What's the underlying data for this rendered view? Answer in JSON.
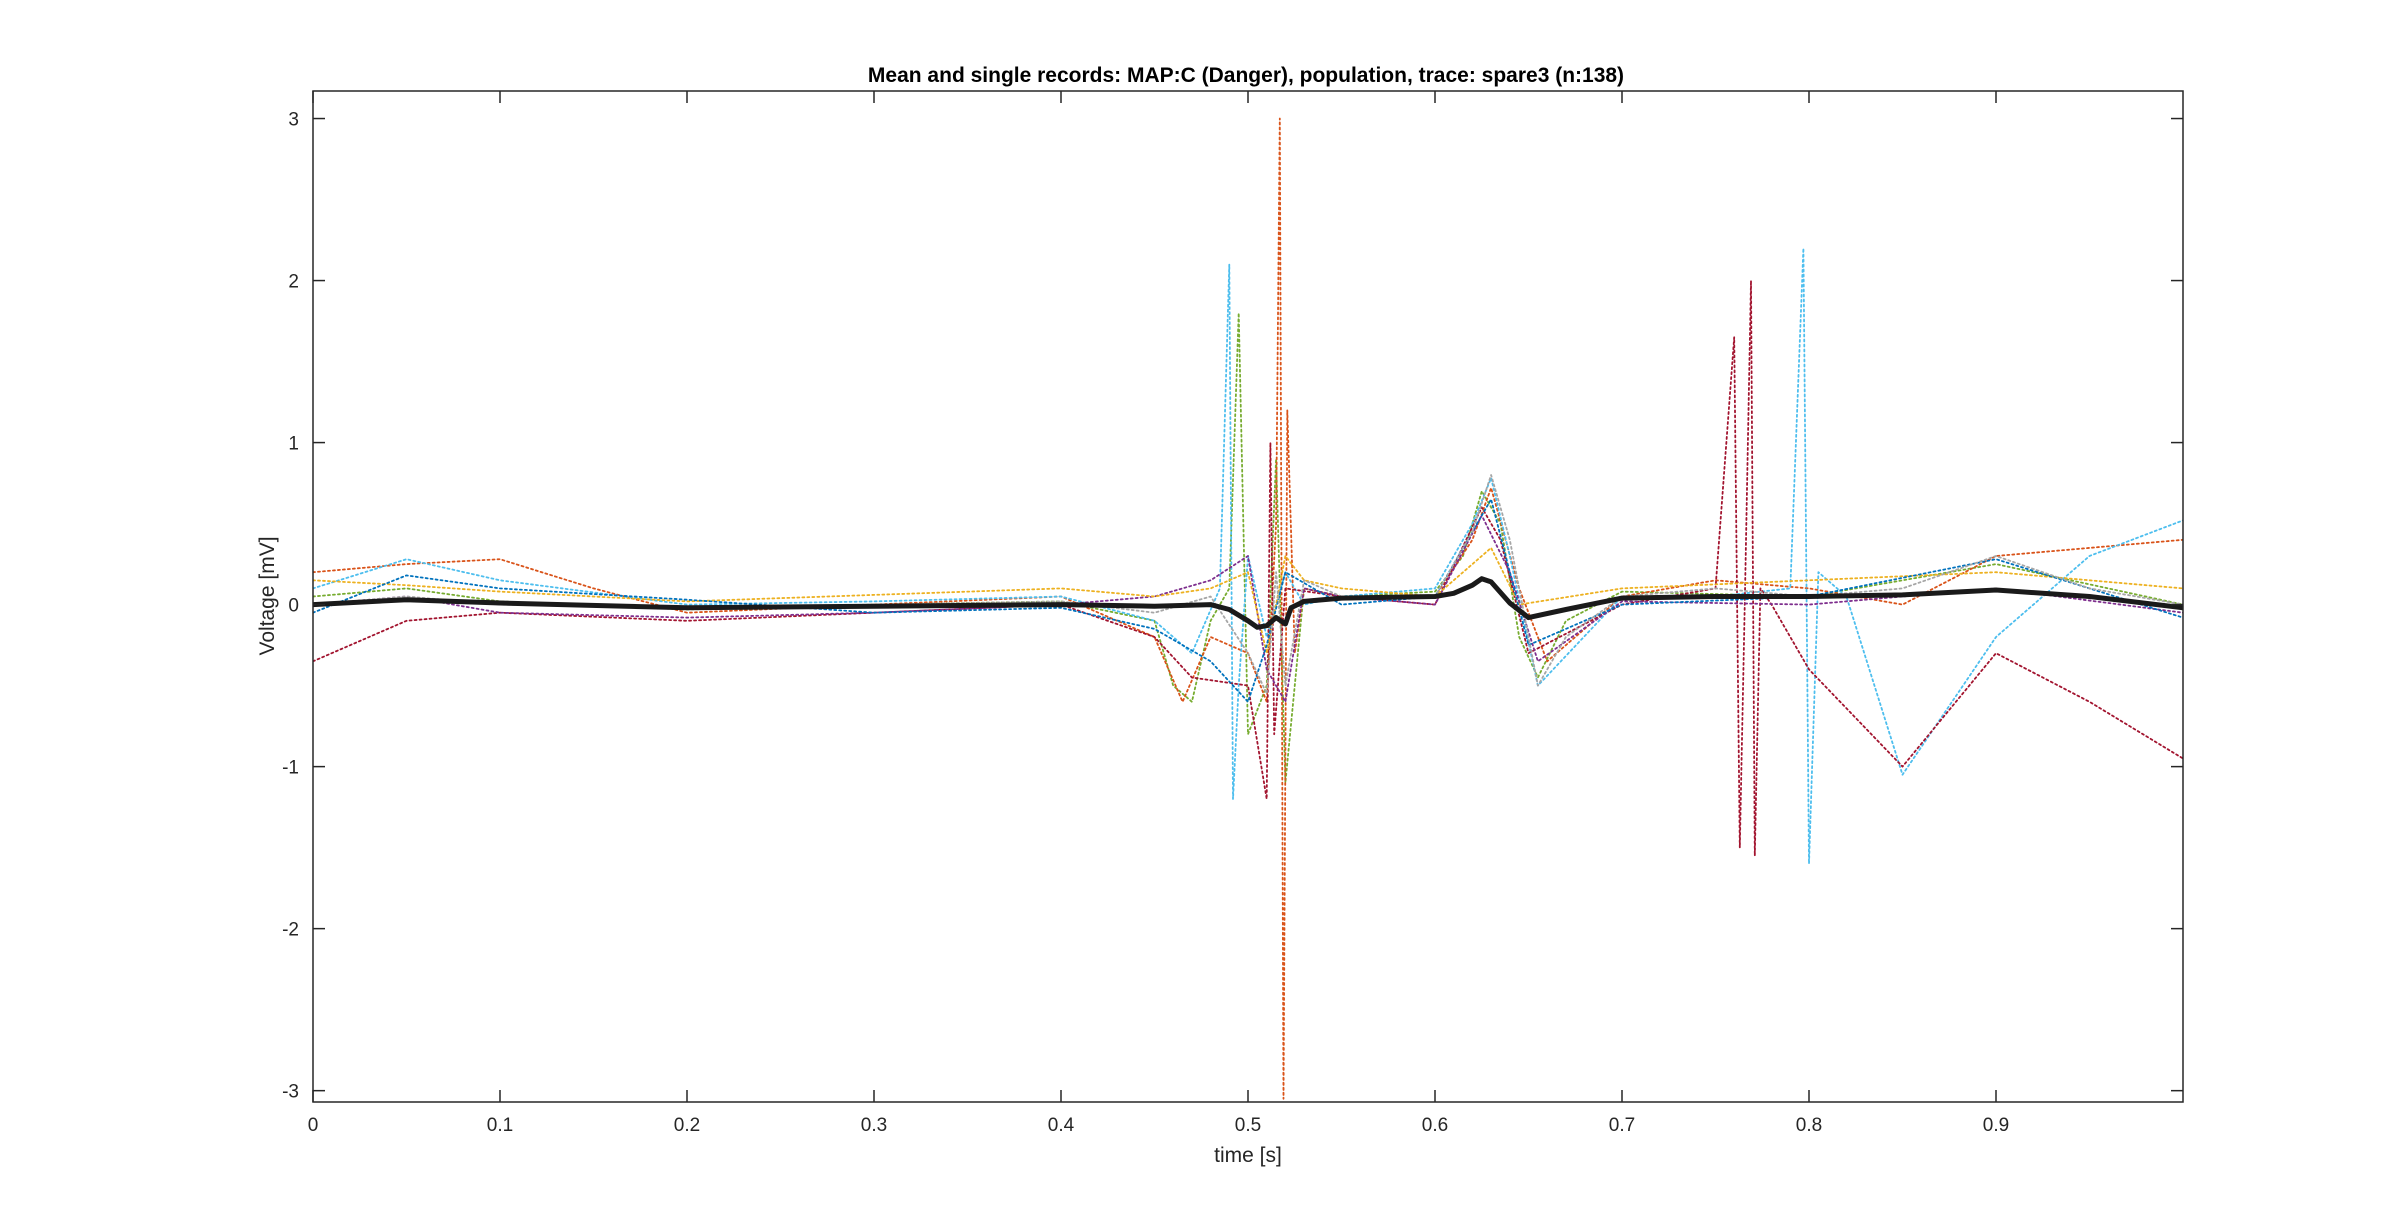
{
  "chart_data": {
    "type": "line",
    "title": "Mean and single records: MAP:C (Danger), population, trace: spare3 (n:138)",
    "xlabel": "time [s]",
    "ylabel": "Voltage [mV]",
    "xlim": [
      0,
      1.0
    ],
    "ylim": [
      -3.07,
      3.17
    ],
    "xticks": [
      0,
      0.1,
      0.2,
      0.3,
      0.4,
      0.5,
      0.6,
      0.7,
      0.8,
      0.9
    ],
    "xtick_labels": [
      "0",
      "0.1",
      "0.2",
      "0.3",
      "0.4",
      "0.5",
      "0.6",
      "0.7",
      "0.8",
      "0.9"
    ],
    "yticks": [
      3,
      2,
      1,
      0,
      -1,
      -2,
      -3
    ],
    "ytick_labels": [
      "3",
      "2",
      "1",
      "0",
      "-1",
      "-2",
      "-3"
    ],
    "grid": false,
    "n_records": 138,
    "series": [
      {
        "name": "",
        "role": "mean",
        "style": "solid",
        "color": "#1a1a1a",
        "x": [
          0,
          0.05,
          0.1,
          0.2,
          0.3,
          0.4,
          0.45,
          0.48,
          0.49,
          0.5,
          0.505,
          0.51,
          0.515,
          0.52,
          0.523,
          0.53,
          0.55,
          0.6,
          0.61,
          0.62,
          0.625,
          0.63,
          0.64,
          0.65,
          0.67,
          0.7,
          0.75,
          0.8,
          0.85,
          0.9,
          0.95,
          1.0
        ],
        "y": [
          0,
          0.03,
          0.01,
          -0.02,
          -0.01,
          0.0,
          -0.01,
          0.0,
          -0.03,
          -0.1,
          -0.14,
          -0.13,
          -0.08,
          -0.12,
          -0.02,
          0.02,
          0.04,
          0.05,
          0.07,
          0.12,
          0.16,
          0.14,
          0.01,
          -0.08,
          -0.03,
          0.04,
          0.05,
          0.05,
          0.06,
          0.09,
          0.05,
          -0.02
        ]
      },
      {
        "name": "",
        "role": "single",
        "style": "dotted",
        "color": "#77ac30",
        "x": [
          0,
          0.05,
          0.1,
          0.2,
          0.3,
          0.4,
          0.45,
          0.46,
          0.47,
          0.48,
          0.49,
          0.495,
          0.5,
          0.51,
          0.515,
          0.52,
          0.53,
          0.55,
          0.6,
          0.615,
          0.625,
          0.635,
          0.645,
          0.655,
          0.67,
          0.7,
          0.8,
          0.9,
          1.0
        ],
        "y": [
          0.05,
          0.1,
          0.02,
          -0.03,
          0.0,
          0.02,
          -0.1,
          -0.5,
          -0.6,
          -0.1,
          0.1,
          1.8,
          -0.8,
          -0.5,
          0.9,
          -1.1,
          0.1,
          0.05,
          0.08,
          0.3,
          0.7,
          0.5,
          -0.2,
          -0.45,
          -0.1,
          0.08,
          0.05,
          0.25,
          0.0
        ]
      },
      {
        "name": "",
        "role": "single",
        "style": "dotted",
        "color": "#d95319",
        "x": [
          0,
          0.05,
          0.1,
          0.15,
          0.2,
          0.3,
          0.4,
          0.45,
          0.465,
          0.48,
          0.5,
          0.51,
          0.515,
          0.517,
          0.519,
          0.521,
          0.525,
          0.53,
          0.55,
          0.6,
          0.62,
          0.63,
          0.645,
          0.66,
          0.7,
          0.75,
          0.8,
          0.85,
          0.9,
          0.95,
          1.0
        ],
        "y": [
          0.2,
          0.25,
          0.28,
          0.1,
          -0.05,
          0.0,
          0.05,
          -0.2,
          -0.6,
          -0.2,
          -0.3,
          -0.6,
          0.5,
          3.0,
          -3.05,
          1.2,
          -0.3,
          0.1,
          0.05,
          0.05,
          0.4,
          0.72,
          0.1,
          -0.35,
          0.05,
          0.15,
          0.1,
          0.0,
          0.3,
          0.35,
          0.4
        ]
      },
      {
        "name": "",
        "role": "single",
        "style": "dotted",
        "color": "#4dbeee",
        "x": [
          0,
          0.05,
          0.1,
          0.2,
          0.3,
          0.4,
          0.45,
          0.47,
          0.485,
          0.49,
          0.492,
          0.495,
          0.5,
          0.51,
          0.52,
          0.53,
          0.55,
          0.6,
          0.62,
          0.63,
          0.64,
          0.655,
          0.7,
          0.75,
          0.79,
          0.797,
          0.8,
          0.805,
          0.82,
          0.85,
          0.9,
          0.95,
          1.0
        ],
        "y": [
          0.1,
          0.28,
          0.15,
          0.0,
          0.02,
          0.05,
          -0.1,
          -0.3,
          0.1,
          2.1,
          -1.2,
          -0.5,
          0.3,
          -0.2,
          0.2,
          0.0,
          0.05,
          0.1,
          0.5,
          0.78,
          0.3,
          -0.5,
          0.05,
          0.05,
          0.1,
          2.2,
          -1.6,
          0.2,
          0.05,
          -1.05,
          -0.2,
          0.3,
          0.52
        ]
      },
      {
        "name": "",
        "role": "single",
        "style": "dotted",
        "color": "#a2142f",
        "x": [
          0,
          0.05,
          0.1,
          0.2,
          0.3,
          0.4,
          0.45,
          0.47,
          0.5,
          0.51,
          0.512,
          0.514,
          0.52,
          0.55,
          0.6,
          0.625,
          0.635,
          0.65,
          0.7,
          0.75,
          0.76,
          0.763,
          0.766,
          0.769,
          0.771,
          0.774,
          0.78,
          0.8,
          0.85,
          0.9,
          0.95,
          1.0
        ],
        "y": [
          -0.35,
          -0.1,
          -0.05,
          -0.1,
          -0.05,
          0.0,
          -0.2,
          -0.45,
          -0.5,
          -1.2,
          1.0,
          -0.8,
          0.1,
          0.05,
          0.0,
          0.6,
          0.4,
          -0.3,
          0.0,
          0.1,
          1.65,
          -1.5,
          0.2,
          2.0,
          -1.55,
          0.1,
          0.0,
          -0.4,
          -1.0,
          -0.3,
          -0.6,
          -0.95
        ]
      },
      {
        "name": "",
        "role": "single",
        "style": "dotted",
        "color": "#7e2f8e",
        "x": [
          0,
          0.05,
          0.1,
          0.2,
          0.3,
          0.4,
          0.45,
          0.48,
          0.5,
          0.51,
          0.52,
          0.53,
          0.55,
          0.6,
          0.625,
          0.64,
          0.655,
          0.7,
          0.8,
          0.9,
          1.0
        ],
        "y": [
          0.0,
          0.05,
          -0.05,
          -0.08,
          -0.05,
          0.0,
          0.05,
          0.15,
          0.3,
          -0.4,
          -0.6,
          0.1,
          0.05,
          0.0,
          0.55,
          0.2,
          -0.35,
          0.02,
          0.0,
          0.1,
          -0.05
        ]
      },
      {
        "name": "",
        "role": "single",
        "style": "dotted",
        "color": "#edb120",
        "x": [
          0,
          0.05,
          0.1,
          0.2,
          0.3,
          0.4,
          0.45,
          0.48,
          0.5,
          0.51,
          0.52,
          0.53,
          0.55,
          0.6,
          0.63,
          0.645,
          0.7,
          0.8,
          0.9,
          1.0
        ],
        "y": [
          0.15,
          0.12,
          0.08,
          0.02,
          0.06,
          0.1,
          0.05,
          0.1,
          0.2,
          -0.3,
          0.3,
          0.15,
          0.1,
          0.05,
          0.35,
          0.0,
          0.1,
          0.15,
          0.2,
          0.1
        ]
      },
      {
        "name": "",
        "role": "single",
        "style": "dotted",
        "color": "#0072bd",
        "x": [
          0,
          0.05,
          0.1,
          0.2,
          0.3,
          0.4,
          0.45,
          0.48,
          0.5,
          0.51,
          0.52,
          0.55,
          0.6,
          0.63,
          0.65,
          0.7,
          0.8,
          0.9,
          1.0
        ],
        "y": [
          -0.05,
          0.18,
          0.1,
          0.03,
          -0.05,
          -0.02,
          -0.15,
          -0.35,
          -0.6,
          -0.25,
          0.2,
          0.0,
          0.05,
          0.65,
          -0.25,
          0.0,
          0.05,
          0.28,
          -0.08
        ]
      },
      {
        "name": "",
        "role": "single",
        "style": "dotted",
        "color": "#a6a6a6",
        "x": [
          0,
          0.05,
          0.1,
          0.2,
          0.3,
          0.4,
          0.45,
          0.48,
          0.5,
          0.51,
          0.515,
          0.52,
          0.53,
          0.55,
          0.6,
          0.62,
          0.63,
          0.64,
          0.655,
          0.67,
          0.7,
          0.75,
          0.8,
          0.85,
          0.9,
          0.95,
          1.0
        ],
        "y": [
          0.0,
          0.05,
          0.0,
          -0.02,
          0.0,
          0.02,
          -0.05,
          0.05,
          -0.3,
          -0.55,
          0.2,
          -0.5,
          0.15,
          0.05,
          0.05,
          0.45,
          0.8,
          0.4,
          -0.5,
          -0.2,
          0.05,
          0.1,
          0.05,
          0.1,
          0.3,
          0.1,
          0.0
        ]
      }
    ]
  }
}
